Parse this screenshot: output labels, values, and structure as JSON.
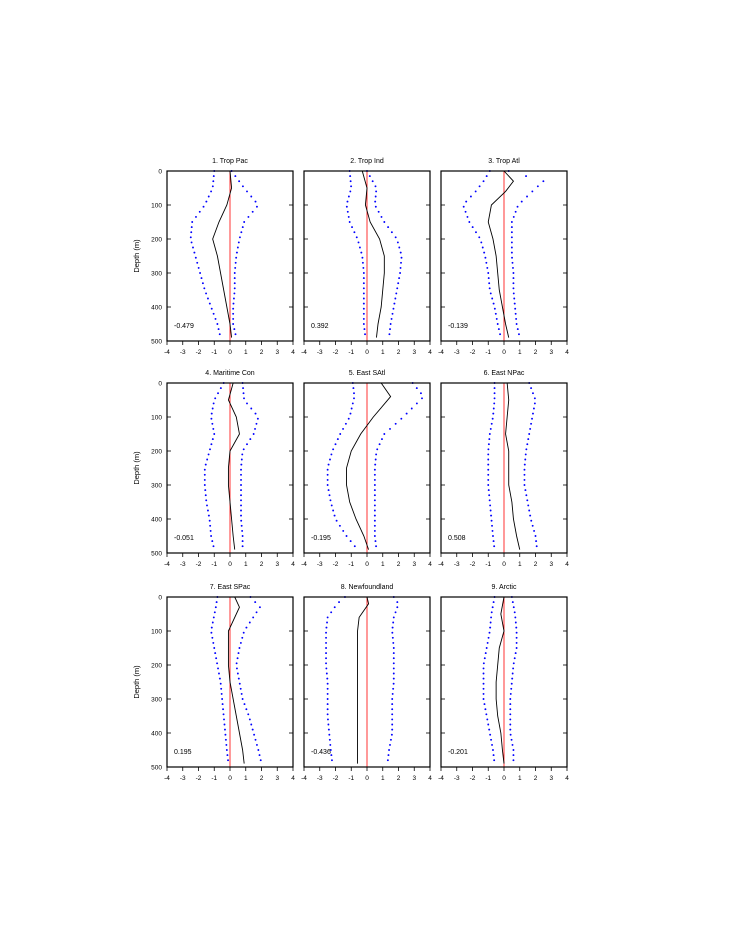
{
  "chart_data": {
    "type": "line",
    "y_axis_label": "Depth (m)",
    "x_ticks": [
      -4,
      -3,
      -2,
      -1,
      0,
      1,
      2,
      3,
      4
    ],
    "y_ticks": [
      0,
      100,
      200,
      300,
      400,
      500
    ],
    "xlim": [
      -4,
      4
    ],
    "ylim": [
      500,
      0
    ],
    "line_colors": {
      "mean": "#000000",
      "bounds": "#0000ff",
      "zero": "#ff0000"
    },
    "panels": [
      {
        "title": "1. Trop Pac",
        "value": "-0.479",
        "depth": [
          0,
          50,
          100,
          150,
          200,
          250,
          300,
          350,
          400,
          450,
          490
        ],
        "mean": [
          0.0,
          0.1,
          -0.2,
          -0.7,
          -1.1,
          -0.8,
          -0.6,
          -0.4,
          -0.2,
          0.0,
          0.1
        ],
        "lower": [
          -1.0,
          -1.1,
          -1.6,
          -2.4,
          -2.5,
          -2.2,
          -1.9,
          -1.6,
          -1.2,
          -0.8,
          -0.6
        ],
        "upper": [
          0.1,
          0.9,
          1.8,
          0.9,
          0.6,
          0.4,
          0.3,
          0.3,
          0.2,
          0.2,
          0.4
        ]
      },
      {
        "title": "2. Trop Ind",
        "value": "0.392",
        "depth": [
          0,
          50,
          100,
          150,
          200,
          250,
          300,
          350,
          400,
          450,
          490
        ],
        "mean": [
          -0.3,
          0.0,
          -0.1,
          0.2,
          0.8,
          1.1,
          1.1,
          1.0,
          0.9,
          0.7,
          0.6
        ],
        "lower": [
          -1.1,
          -1.0,
          -1.3,
          -1.1,
          -0.6,
          -0.3,
          -0.2,
          -0.2,
          -0.2,
          -0.2,
          -0.1
        ],
        "upper": [
          0.0,
          0.6,
          0.5,
          1.1,
          1.9,
          2.2,
          2.1,
          1.9,
          1.7,
          1.5,
          1.4
        ]
      },
      {
        "title": "3. Trop Atl",
        "value": "-0.139",
        "depth": [
          0,
          30,
          60,
          100,
          150,
          200,
          250,
          300,
          350,
          400,
          450,
          490
        ],
        "mean": [
          0.0,
          0.6,
          0.1,
          -0.8,
          -1.0,
          -0.7,
          -0.5,
          -0.4,
          -0.3,
          -0.1,
          0.1,
          0.3
        ],
        "lower": [
          -0.9,
          -1.3,
          -1.8,
          -2.6,
          -2.2,
          -1.5,
          -1.2,
          -1.0,
          -0.9,
          -0.6,
          -0.4,
          -0.2
        ],
        "upper": [
          0.3,
          2.5,
          1.8,
          0.9,
          0.5,
          0.5,
          0.5,
          0.6,
          0.6,
          0.7,
          0.8,
          1.0
        ]
      },
      {
        "title": "4. Maritime Con",
        "value": "-0.051",
        "depth": [
          0,
          50,
          100,
          150,
          200,
          250,
          300,
          350,
          400,
          450,
          490
        ],
        "mean": [
          0.2,
          -0.1,
          0.4,
          0.6,
          0.0,
          -0.1,
          -0.1,
          0.0,
          0.1,
          0.2,
          0.3
        ],
        "lower": [
          -0.4,
          -1.0,
          -1.2,
          -1.0,
          -1.3,
          -1.6,
          -1.6,
          -1.5,
          -1.3,
          -1.2,
          -1.0
        ],
        "upper": [
          0.8,
          0.9,
          1.8,
          1.5,
          0.8,
          0.7,
          0.7,
          0.7,
          0.7,
          0.8,
          0.8
        ]
      },
      {
        "title": "5. East SAtl",
        "value": "-0.195",
        "depth": [
          0,
          40,
          100,
          150,
          200,
          250,
          300,
          350,
          400,
          450,
          490
        ],
        "mean": [
          0.9,
          1.5,
          0.4,
          -0.4,
          -1.0,
          -1.3,
          -1.3,
          -1.1,
          -0.7,
          -0.2,
          0.1
        ],
        "lower": [
          -0.9,
          -0.8,
          -1.1,
          -1.7,
          -2.2,
          -2.5,
          -2.5,
          -2.3,
          -2.0,
          -1.3,
          -0.6
        ],
        "upper": [
          2.9,
          3.6,
          2.3,
          1.1,
          0.6,
          0.5,
          0.5,
          0.5,
          0.5,
          0.5,
          0.6
        ]
      },
      {
        "title": "6. East NPac",
        "value": "0.508",
        "depth": [
          0,
          50,
          100,
          150,
          200,
          250,
          300,
          350,
          400,
          450,
          490
        ],
        "mean": [
          0.2,
          0.3,
          0.2,
          0.1,
          0.3,
          0.3,
          0.3,
          0.5,
          0.6,
          0.8,
          1.0
        ],
        "lower": [
          -0.6,
          -0.6,
          -0.7,
          -0.9,
          -1.0,
          -1.0,
          -1.0,
          -0.9,
          -0.8,
          -0.7,
          -0.6
        ],
        "upper": [
          1.6,
          2.0,
          1.8,
          1.6,
          1.4,
          1.3,
          1.3,
          1.5,
          1.7,
          2.0,
          2.1
        ]
      },
      {
        "title": "7. East SPac",
        "value": "0.195",
        "depth": [
          0,
          30,
          100,
          150,
          200,
          250,
          300,
          350,
          400,
          450,
          490
        ],
        "mean": [
          0.3,
          0.6,
          -0.1,
          -0.1,
          -0.1,
          0.0,
          0.2,
          0.4,
          0.6,
          0.8,
          0.9
        ],
        "lower": [
          -0.8,
          -0.9,
          -1.2,
          -1.0,
          -0.8,
          -0.6,
          -0.5,
          -0.4,
          -0.3,
          -0.2,
          -0.1
        ],
        "upper": [
          1.3,
          1.9,
          0.9,
          0.6,
          0.4,
          0.6,
          0.8,
          1.2,
          1.5,
          1.8,
          2.0
        ]
      },
      {
        "title": "8. Newfoundland",
        "value": "-0.436",
        "depth": [
          0,
          20,
          60,
          100,
          150,
          200,
          250,
          300,
          350,
          400,
          450,
          490
        ],
        "mean": [
          0.0,
          0.1,
          -0.5,
          -0.6,
          -0.6,
          -0.6,
          -0.6,
          -0.6,
          -0.6,
          -0.6,
          -0.6,
          -0.6
        ],
        "lower": [
          -1.4,
          -1.9,
          -2.5,
          -2.6,
          -2.6,
          -2.6,
          -2.5,
          -2.5,
          -2.5,
          -2.4,
          -2.3,
          -2.2
        ],
        "upper": [
          1.7,
          2.0,
          1.7,
          1.6,
          1.7,
          1.7,
          1.7,
          1.6,
          1.6,
          1.6,
          1.4,
          1.3
        ]
      },
      {
        "title": "9. Arctic",
        "value": "-0.201",
        "depth": [
          0,
          50,
          100,
          150,
          200,
          250,
          300,
          350,
          400,
          450,
          490
        ],
        "mean": [
          0.0,
          -0.2,
          0.0,
          -0.3,
          -0.4,
          -0.5,
          -0.5,
          -0.4,
          -0.2,
          -0.1,
          0.0
        ],
        "lower": [
          -0.6,
          -0.8,
          -0.9,
          -1.1,
          -1.3,
          -1.3,
          -1.3,
          -1.1,
          -0.9,
          -0.7,
          -0.6
        ],
        "upper": [
          0.5,
          0.7,
          0.8,
          0.8,
          0.6,
          0.5,
          0.4,
          0.4,
          0.4,
          0.6,
          0.6
        ]
      }
    ]
  }
}
